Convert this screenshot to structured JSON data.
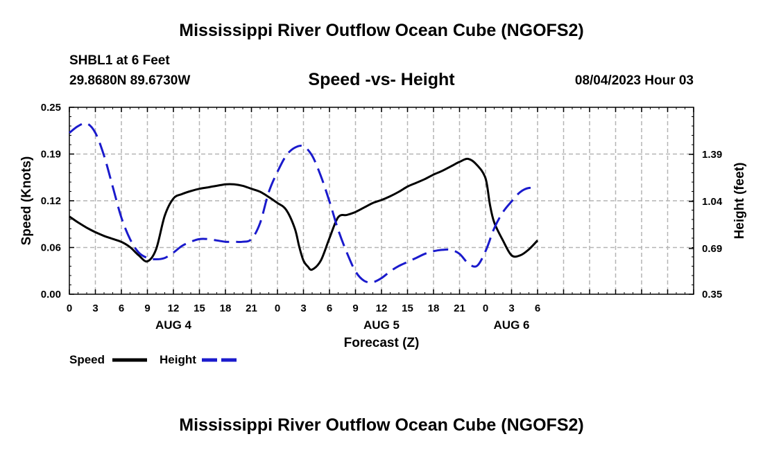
{
  "header": {
    "title": "Mississippi River Outflow Ocean Cube (NGOFS2)",
    "station": "SHBL1 at 6 Feet",
    "location": "29.8680N  89.6730W",
    "subtitle": "Speed -vs- Height",
    "datetime": "08/04/2023 Hour 03"
  },
  "footer": {
    "title": "Mississippi River Outflow Ocean Cube (NGOFS2)"
  },
  "chart_data": {
    "type": "line",
    "title": "Speed -vs- Height",
    "xlabel": "Forecast (Z)",
    "ylabel": "Speed (Knots)",
    "y2label": "Height (feet)",
    "grid": true,
    "xlim": [
      0,
      72
    ],
    "ylim": [
      0,
      0.25
    ],
    "y2lim": [
      0.35,
      1.74
    ],
    "x_ticks": [
      0,
      3,
      6,
      9,
      12,
      15,
      18,
      21,
      24,
      27,
      30,
      33,
      36,
      39,
      42,
      45,
      48,
      51,
      54,
      57,
      60,
      63,
      66,
      69,
      72
    ],
    "x_tick_labels": [
      "0",
      "3",
      "6",
      "9",
      "12",
      "15",
      "18",
      "21",
      "0",
      "3",
      "6",
      "9",
      "12",
      "15",
      "18",
      "21",
      "0",
      "3",
      "6",
      "",
      "",
      "",
      "",
      "",
      ""
    ],
    "day_labels": [
      {
        "label": "AUG 4",
        "x": 12
      },
      {
        "label": "AUG 5",
        "x": 36
      },
      {
        "label": "AUG 6",
        "x": 51
      }
    ],
    "y_ticks": [
      0,
      0.0625,
      0.125,
      0.1875,
      0.25
    ],
    "y_tick_labels": [
      "0.00",
      "0.06",
      "0.12",
      "0.19",
      "0.25"
    ],
    "y2_ticks": [
      0.35,
      0.69,
      1.04,
      1.39
    ],
    "y2_tick_labels": [
      "0.35",
      "0.69",
      "1.04",
      "1.39"
    ],
    "series": [
      {
        "name": "Speed",
        "axis": "left",
        "color": "#000000",
        "dash": "solid",
        "x": [
          0,
          1,
          2,
          3,
          4,
          5,
          6,
          7,
          8,
          9,
          10,
          11,
          12,
          13,
          14,
          15,
          16,
          17,
          18,
          19,
          20,
          21,
          22,
          23,
          24,
          25,
          26,
          26.5,
          27,
          27.5,
          28,
          29,
          30,
          31,
          32,
          33,
          34,
          35,
          36,
          37,
          38,
          39,
          40,
          41,
          42,
          43,
          44,
          45,
          46,
          47,
          48,
          48.5,
          49,
          50,
          51,
          52,
          53,
          54
        ],
        "values": [
          0.104,
          0.096,
          0.089,
          0.083,
          0.078,
          0.074,
          0.07,
          0.063,
          0.052,
          0.044,
          0.06,
          0.105,
          0.128,
          0.134,
          0.138,
          0.141,
          0.143,
          0.145,
          0.147,
          0.147,
          0.145,
          0.141,
          0.137,
          0.13,
          0.122,
          0.113,
          0.088,
          0.064,
          0.045,
          0.037,
          0.033,
          0.045,
          0.075,
          0.103,
          0.106,
          0.11,
          0.116,
          0.122,
          0.126,
          0.131,
          0.137,
          0.144,
          0.149,
          0.154,
          0.16,
          0.165,
          0.171,
          0.177,
          0.181,
          0.173,
          0.155,
          0.12,
          0.096,
          0.072,
          0.052,
          0.052,
          0.06,
          0.072
        ]
      },
      {
        "name": "Height",
        "axis": "right",
        "color": "#1a1acc",
        "dash": "dashed",
        "x": [
          0,
          1,
          2,
          3,
          4,
          5,
          6,
          7,
          8,
          9,
          10,
          11,
          12,
          13,
          14,
          15,
          16,
          17,
          18,
          19,
          20,
          21,
          22,
          23,
          24,
          25,
          26,
          27,
          28,
          29,
          30,
          31,
          32,
          33,
          34,
          35,
          36,
          37,
          38,
          39,
          40,
          41,
          42,
          43,
          44,
          45,
          46,
          47,
          48,
          49,
          50,
          51,
          52,
          53,
          54
        ],
        "values": [
          1.55,
          1.6,
          1.62,
          1.55,
          1.38,
          1.15,
          0.92,
          0.76,
          0.66,
          0.62,
          0.61,
          0.62,
          0.66,
          0.71,
          0.74,
          0.76,
          0.76,
          0.75,
          0.74,
          0.74,
          0.74,
          0.76,
          0.88,
          1.11,
          1.26,
          1.38,
          1.44,
          1.45,
          1.38,
          1.23,
          1.04,
          0.83,
          0.66,
          0.52,
          0.45,
          0.44,
          0.47,
          0.52,
          0.56,
          0.59,
          0.62,
          0.65,
          0.67,
          0.68,
          0.68,
          0.65,
          0.58,
          0.56,
          0.67,
          0.84,
          0.96,
          1.04,
          1.11,
          1.14,
          1.13
        ]
      }
    ],
    "legend": [
      {
        "label": "Speed",
        "color": "#000000",
        "dash": "solid"
      },
      {
        "label": "Height",
        "color": "#1a1acc",
        "dash": "dashed"
      }
    ],
    "legend_position": "bottom-left"
  }
}
